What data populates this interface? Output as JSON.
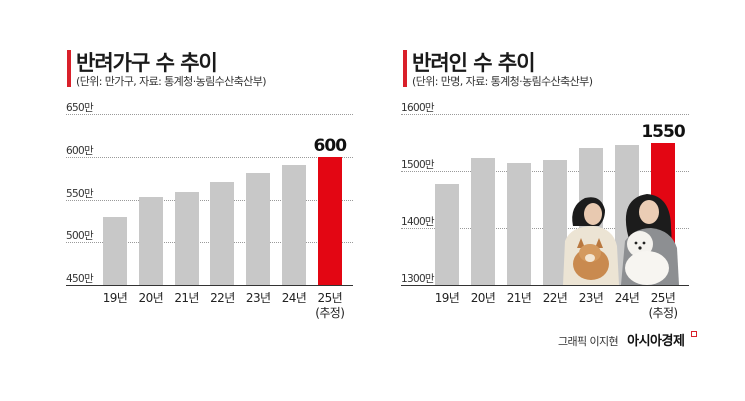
{
  "left_chart": {
    "title": "반려가구 수 추이",
    "subtitle": "(단위: 만가구, 자료: 통계청·농림수산축산부)",
    "y_ticks": [
      "650만",
      "600만",
      "550만",
      "500만",
      "450만"
    ],
    "x_labels": [
      "19년",
      "20년",
      "21년",
      "22년",
      "23년",
      "24년",
      "25년"
    ],
    "x_label_note": "(추정)",
    "highlight_value": "600"
  },
  "right_chart": {
    "title": "반려인 수 추이",
    "subtitle": "(단위: 만명, 자료: 통계청·농림수산축산부)",
    "y_ticks": [
      "1600만",
      "1500만",
      "1400만",
      "1300만"
    ],
    "x_labels": [
      "19년",
      "20년",
      "21년",
      "22년",
      "23년",
      "24년",
      "25년"
    ],
    "x_label_note": "(추정)",
    "highlight_value": "1550",
    "photo": "two women holding a shiba inu and a white poodle"
  },
  "credit": {
    "byline": "그래픽 이지현",
    "brand": "아시아경제"
  },
  "colors": {
    "accent": "#d9202a",
    "bar": "#c8c8c8",
    "highlight_bar": "#e30613"
  },
  "chart_data": [
    {
      "type": "bar",
      "title": "반려가구 수 추이",
      "subtitle": "(단위: 만가구, 자료: 통계청·농림수산축산부)",
      "categories": [
        "19년",
        "20년",
        "21년",
        "22년",
        "23년",
        "24년",
        "25년(추정)"
      ],
      "values": [
        530,
        553,
        559,
        570,
        581,
        590,
        600
      ],
      "data_labels": {
        "25년(추정)": 600
      },
      "xlabel": "",
      "ylabel": "만가구",
      "ylim": [
        450,
        650
      ],
      "y_ticks": [
        450,
        500,
        550,
        600,
        650
      ],
      "grid": true,
      "highlight": "25년(추정)"
    },
    {
      "type": "bar",
      "title": "반려인 수 추이",
      "subtitle": "(단위: 만명, 자료: 통계청·농림수산축산부)",
      "categories": [
        "19년",
        "20년",
        "21년",
        "22년",
        "23년",
        "24년",
        "25년(추정)"
      ],
      "values": [
        1477,
        1523,
        1514,
        1519,
        1540,
        1546,
        1550
      ],
      "data_labels": {
        "25년(추정)": 1550
      },
      "xlabel": "",
      "ylabel": "만명",
      "ylim": [
        1300,
        1600
      ],
      "y_ticks": [
        1300,
        1400,
        1500,
        1600
      ],
      "grid": true,
      "highlight": "25년(추정)"
    }
  ]
}
